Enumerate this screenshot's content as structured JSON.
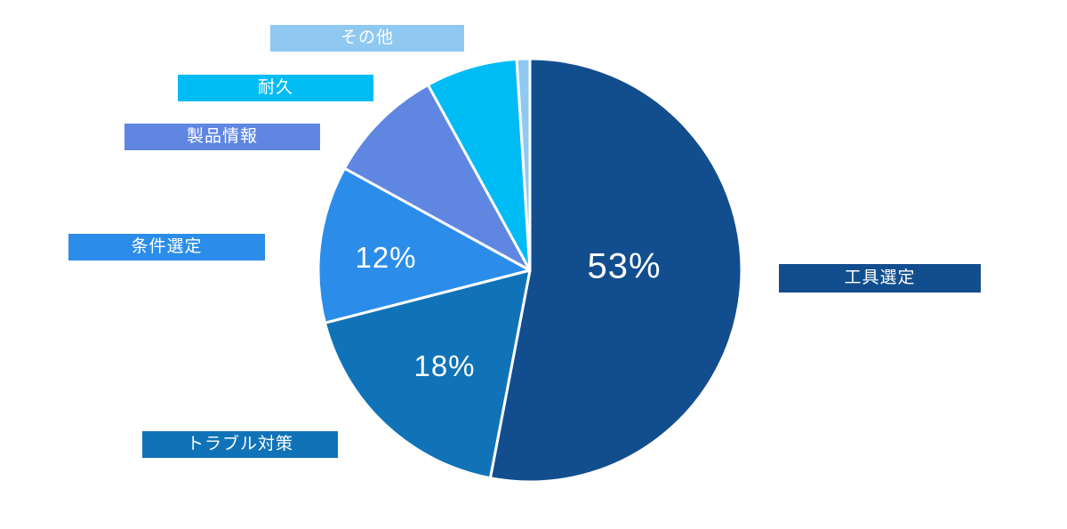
{
  "chart_data": {
    "type": "pie",
    "title": "",
    "categories": [
      "工具選定",
      "トラブル対策",
      "条件選定",
      "製品情報",
      "耐久",
      "その他"
    ],
    "values": [
      53,
      18,
      12,
      9,
      7,
      1
    ],
    "unit": "%",
    "colors": [
      "#124E8E",
      "#1173B7",
      "#2B8DE9",
      "#5F87E2",
      "#00BCF5",
      "#8FC9F1"
    ],
    "percent_labels": [
      "53%",
      "18%",
      "12%"
    ],
    "start_angle": "12-oclock",
    "direction": "clockwise",
    "slice_gap_color": "#FFFFFF",
    "background_color": "#FFFFFF",
    "legend_position": "floating-category-labels"
  }
}
